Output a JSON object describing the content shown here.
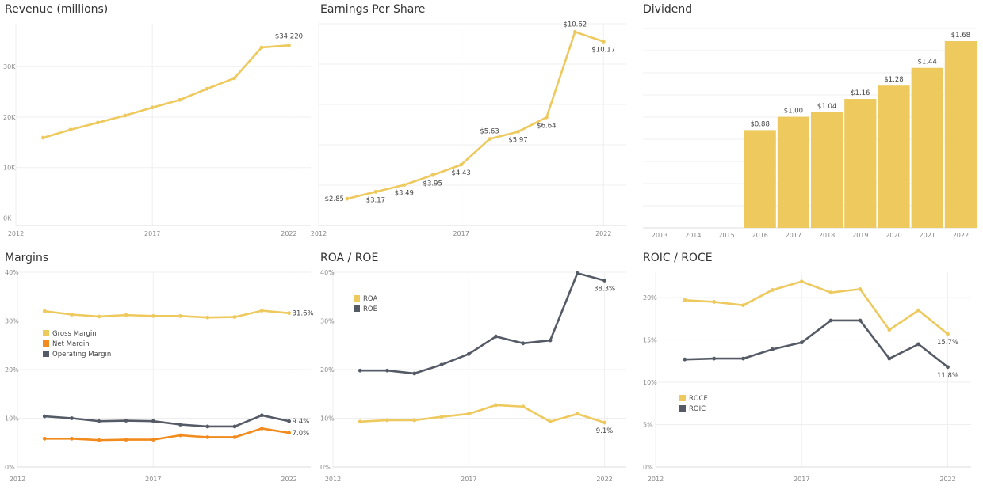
{
  "colors": {
    "gold": "#EDC95E",
    "dark": "#555B66",
    "orange": "#F28B1D",
    "grid": "#EFEFEF",
    "axis": "#DDDDDD"
  },
  "chart_data": [
    {
      "id": "revenue",
      "type": "line",
      "title": "Revenue (millions)",
      "x": [
        2013,
        2014,
        2015,
        2016,
        2017,
        2018,
        2019,
        2020,
        2021,
        2022
      ],
      "series": [
        {
          "values": [
            15900,
            17500,
            18900,
            20300,
            21900,
            23400,
            25600,
            27700,
            33800,
            34220
          ],
          "color": "gold",
          "labels": [
            "",
            "",
            "",
            "",
            "",
            "",
            "",
            "",
            "",
            "$34,220"
          ]
        }
      ],
      "xticks": [
        2012,
        2017,
        2022
      ],
      "yticks": [
        0,
        10000,
        20000,
        30000
      ],
      "ytick_labels": [
        "0K",
        "10K",
        "20K",
        "30K"
      ],
      "xlim": [
        2012,
        2022.8
      ],
      "ylim": [
        -1500,
        38500
      ]
    },
    {
      "id": "eps",
      "type": "line",
      "title": "Earnings Per Share",
      "x": [
        2013,
        2014,
        2015,
        2016,
        2017,
        2018,
        2019,
        2020,
        2021,
        2022
      ],
      "series": [
        {
          "values": [
            2.85,
            3.17,
            3.49,
            3.95,
            4.43,
            5.63,
            5.97,
            6.64,
            10.62,
            10.17
          ],
          "color": "gold",
          "labels": [
            "$2.85",
            "$3.17",
            "$3.49",
            "$3.95",
            "$4.43",
            "$5.63",
            "$5.97",
            "$6.64",
            "$10.62",
            "$10.17"
          ]
        }
      ],
      "xticks": [
        2012,
        2017,
        2022
      ],
      "yticks": [],
      "ytick_labels": [],
      "xlim": [
        2012,
        2022.8
      ],
      "ylim": [
        1.6,
        11
      ]
    },
    {
      "id": "dividend",
      "type": "bar",
      "title": "Dividend",
      "categories": [
        "2013",
        "2014",
        "2015",
        "2016",
        "2017",
        "2018",
        "2019",
        "2020",
        "2021",
        "2022"
      ],
      "values": [
        null,
        null,
        null,
        0.88,
        1.0,
        1.04,
        1.16,
        1.28,
        1.44,
        1.68
      ],
      "labels": [
        "",
        "",
        "",
        "$0.88",
        "$1.00",
        "$1.04",
        "$1.16",
        "$1.28",
        "$1.44",
        "$1.68"
      ],
      "color": "gold",
      "ylim": [
        0,
        1.68
      ]
    },
    {
      "id": "margins",
      "type": "line",
      "title": "Margins",
      "x": [
        2013,
        2014,
        2015,
        2016,
        2017,
        2018,
        2019,
        2020,
        2021,
        2022
      ],
      "series": [
        {
          "name": "Gross Margin",
          "color": "gold",
          "values": [
            32.0,
            31.3,
            30.9,
            31.2,
            31.0,
            31.0,
            30.7,
            30.8,
            32.1,
            31.6
          ],
          "labels": [
            "",
            "",
            "",
            "",
            "",
            "",
            "",
            "",
            "",
            "31.6%"
          ]
        },
        {
          "name": "Net Margin",
          "color": "orange",
          "values": [
            5.8,
            5.8,
            5.5,
            5.6,
            5.6,
            6.5,
            6.1,
            6.1,
            7.9,
            7.0
          ],
          "labels": [
            "",
            "",
            "",
            "",
            "",
            "",
            "",
            "",
            "",
            "7.0%"
          ]
        },
        {
          "name": "Operating Margin",
          "color": "dark",
          "values": [
            10.4,
            10.0,
            9.4,
            9.5,
            9.4,
            8.7,
            8.3,
            8.3,
            10.6,
            9.4
          ],
          "labels": [
            "",
            "",
            "",
            "",
            "",
            "",
            "",
            "",
            "",
            "9.4%"
          ]
        }
      ],
      "xticks": [
        2012,
        2017,
        2022
      ],
      "yticks": [
        0,
        10,
        20,
        30,
        40
      ],
      "ytick_labels": [
        "0%",
        "10%",
        "20%",
        "30%",
        "40%"
      ],
      "xlim": [
        2012,
        2022.8
      ],
      "ylim": [
        0,
        40
      ],
      "legend_position": "left"
    },
    {
      "id": "roa-roe",
      "type": "line",
      "title": "ROA / ROE",
      "x": [
        2013,
        2014,
        2015,
        2016,
        2017,
        2018,
        2019,
        2020,
        2021,
        2022
      ],
      "series": [
        {
          "name": "ROA",
          "color": "gold",
          "values": [
            9.3,
            9.6,
            9.6,
            10.3,
            10.9,
            12.7,
            12.4,
            9.3,
            10.9,
            9.1
          ],
          "labels": [
            "",
            "",
            "",
            "",
            "",
            "",
            "",
            "",
            "",
            "9.1%"
          ]
        },
        {
          "name": "ROE",
          "color": "dark",
          "values": [
            19.8,
            19.8,
            19.2,
            21.0,
            23.2,
            26.8,
            25.4,
            26.0,
            39.8,
            38.3
          ],
          "labels": [
            "",
            "",
            "",
            "",
            "",
            "",
            "",
            "",
            "",
            "38.3%"
          ]
        }
      ],
      "xticks": [
        2012,
        2017,
        2022
      ],
      "yticks": [
        0,
        10,
        20,
        30,
        40
      ],
      "ytick_labels": [
        "0%",
        "10%",
        "20%",
        "30%",
        "40%"
      ],
      "xlim": [
        2012,
        2022.8
      ],
      "ylim": [
        0,
        40
      ],
      "legend_position": "top-left"
    },
    {
      "id": "roic-roce",
      "type": "line",
      "title": "ROIC / ROCE",
      "x": [
        2013,
        2014,
        2015,
        2016,
        2017,
        2018,
        2019,
        2020,
        2021,
        2022
      ],
      "series": [
        {
          "name": "ROCE",
          "color": "gold",
          "values": [
            19.7,
            19.5,
            19.1,
            20.9,
            21.9,
            20.6,
            21.0,
            16.2,
            18.5,
            15.7
          ],
          "labels": [
            "",
            "",
            "",
            "",
            "",
            "",
            "",
            "",
            "",
            "15.7%"
          ]
        },
        {
          "name": "ROIC",
          "color": "dark",
          "values": [
            12.7,
            12.8,
            12.8,
            13.9,
            14.7,
            17.3,
            17.3,
            12.8,
            14.5,
            11.8
          ],
          "labels": [
            "",
            "",
            "",
            "",
            "",
            "",
            "",
            "",
            "",
            "11.8%"
          ]
        }
      ],
      "xticks": [
        2012,
        2017,
        2022
      ],
      "yticks": [
        0,
        5,
        10,
        15,
        20
      ],
      "ytick_labels": [
        "0%",
        "5%",
        "10%",
        "15%",
        "20%"
      ],
      "xlim": [
        2012,
        2022.8
      ],
      "ylim": [
        0,
        23
      ],
      "legend_position": "bottom-left"
    }
  ]
}
